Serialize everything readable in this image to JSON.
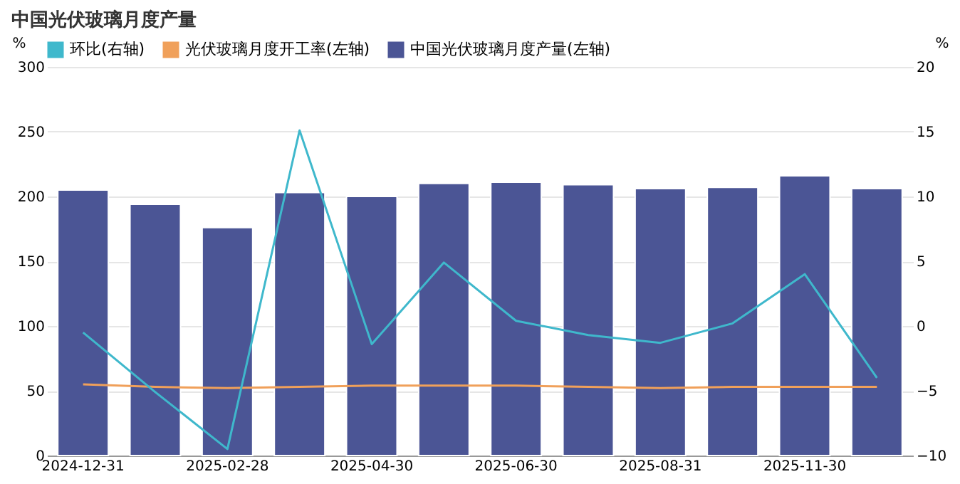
{
  "chart_data": {
    "type": "bar",
    "title": "中国光伏玻璃月度产量",
    "categories": [
      "2024-12-31",
      null,
      "2025-02-28",
      null,
      "2025-04-30",
      null,
      "2025-06-30",
      null,
      "2025-08-31",
      null,
      "2025-11-30",
      null
    ],
    "series": [
      {
        "name": "环比(右轴)",
        "type": "line",
        "axis": "y2",
        "color": "#3fb8cc",
        "values": [
          -0.5,
          -5.1,
          -9.5,
          15.1,
          -1.4,
          4.9,
          0.4,
          -0.7,
          -1.3,
          0.2,
          4.0,
          -4.0
        ]
      },
      {
        "name": "光伏玻璃月度开工率(左轴)",
        "type": "line",
        "color": "#f0a05a",
        "values": [
          55,
          53,
          52,
          53,
          54,
          54,
          54,
          53,
          52,
          53,
          53,
          53
        ]
      },
      {
        "name": "中国光伏玻璃月度产量(左轴)",
        "color": "#4b5595",
        "values": [
          205,
          194,
          176,
          203,
          200,
          210,
          211,
          209,
          206,
          207,
          216,
          206
        ]
      }
    ],
    "ylabel": "%",
    "y2label": "%",
    "ylim": [
      0,
      300
    ],
    "yticks": [
      0,
      50,
      100,
      150,
      200,
      250,
      300
    ],
    "y2lim": [
      -10,
      20
    ],
    "y2ticks": [
      -10,
      -5,
      0,
      5,
      10,
      15,
      20
    ],
    "grid": "y",
    "legend": "top left"
  }
}
